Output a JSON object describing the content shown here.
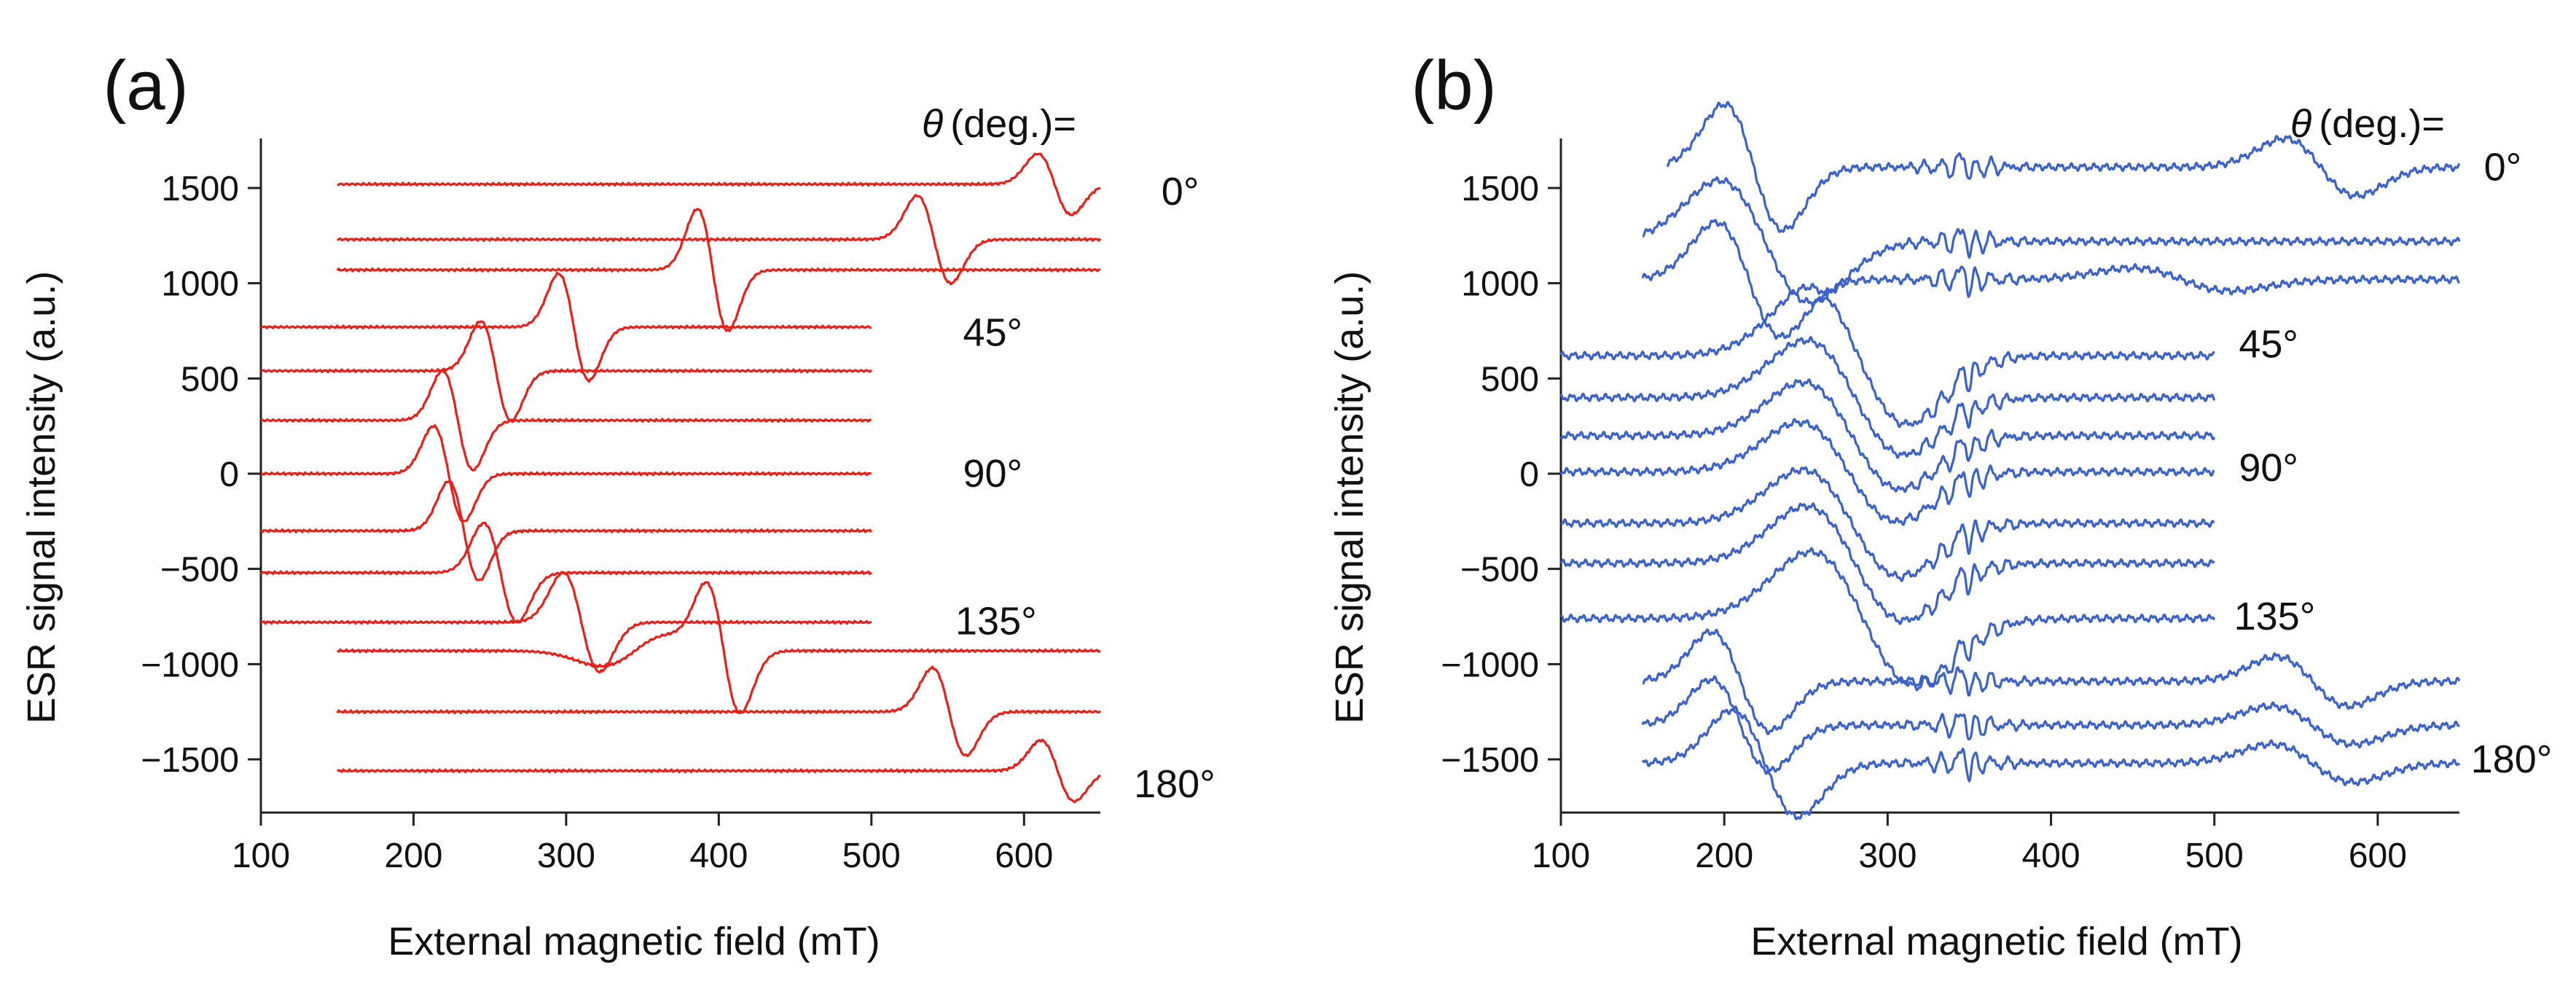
{
  "chart_data": [
    {
      "type": "line",
      "panel_label": "(a)",
      "xlabel": "External magnetic field (mT)",
      "ylabel": "ESR signal intensity (a.u.)",
      "xlim": [
        100,
        650
      ],
      "ylim": [
        -1800,
        1800
      ],
      "xticks": [
        100,
        200,
        300,
        400,
        500,
        600
      ],
      "xtick_labels": [
        "100",
        "200",
        "300",
        "400",
        "500",
        "600"
      ],
      "yticks": [
        1500,
        1000,
        500,
        0,
        -500,
        -1000,
        -1500
      ],
      "ytick_labels": [
        "1500",
        "1000",
        "500",
        "0",
        "−500",
        "−1000",
        "−1500"
      ],
      "header": {
        "symbol": "θ",
        "text": "(deg.)="
      },
      "annotations": [
        {
          "text": "0°",
          "x": 690,
          "y": 1480
        },
        {
          "text": "45°",
          "x": 560,
          "y": 740
        },
        {
          "text": "90°",
          "x": 560,
          "y": 0
        },
        {
          "text": "135°",
          "x": 555,
          "y": -775
        },
        {
          "text": "180°",
          "x": 672,
          "y": -1630
        }
      ],
      "color": "#e8201a",
      "series": [
        {
          "x_range": [
            150,
            650
          ],
          "baseline": 1520,
          "features": [
            {
              "center": 620,
              "width": 11,
              "amplitude": 160
            }
          ]
        },
        {
          "x_range": [
            150,
            650
          ],
          "baseline": 1230,
          "features": [
            {
              "center": 541,
              "width": 11,
              "amplitude": 230
            }
          ]
        },
        {
          "x_range": [
            150,
            650
          ],
          "baseline": 1070,
          "features": [
            {
              "center": 396,
              "width": 10,
              "amplitude": 320
            }
          ]
        },
        {
          "x_range": [
            100,
            500
          ],
          "baseline": 770,
          "features": [
            {
              "center": 305,
              "width": 10,
              "amplitude": 280
            }
          ]
        },
        {
          "x_range": [
            100,
            500
          ],
          "baseline": 540,
          "features": [
            {
              "center": 254,
              "width": 10,
              "amplitude": 260
            }
          ]
        },
        {
          "x_range": [
            100,
            500
          ],
          "baseline": 280,
          "features": [
            {
              "center": 229,
              "width": 10,
              "amplitude": 260
            }
          ]
        },
        {
          "x_range": [
            100,
            500
          ],
          "baseline": 0,
          "features": [
            {
              "center": 223,
              "width": 10,
              "amplitude": 250
            }
          ]
        },
        {
          "x_range": [
            100,
            500
          ],
          "baseline": -300,
          "features": [
            {
              "center": 233,
              "width": 10,
              "amplitude": 260
            }
          ]
        },
        {
          "x_range": [
            100,
            500
          ],
          "baseline": -520,
          "features": [
            {
              "center": 257,
              "width": 11,
              "amplitude": 260
            }
          ]
        },
        {
          "x_range": [
            100,
            500
          ],
          "baseline": -780,
          "features": [
            {
              "center": 310,
              "width": 12,
              "amplitude": 260
            }
          ]
        },
        {
          "x_range": [
            150,
            650
          ],
          "baseline": -930,
          "features": [
            {
              "center": 403,
              "width": 11,
              "amplitude": 330
            },
            {
              "center": 345,
              "width": 22,
              "amplitude": -80
            }
          ]
        },
        {
          "x_range": [
            150,
            650
          ],
          "baseline": -1250,
          "features": [
            {
              "center": 551,
              "width": 11,
              "amplitude": 230
            }
          ]
        },
        {
          "x_range": [
            150,
            650
          ],
          "baseline": -1560,
          "features": [
            {
              "center": 622,
              "width": 11,
              "amplitude": 160
            }
          ]
        }
      ]
    },
    {
      "type": "line",
      "panel_label": "(b)",
      "xlabel": "External magnetic field (mT)",
      "ylabel": "ESR signal intensity (a.u.)",
      "xlim": [
        100,
        650
      ],
      "ylim": [
        -1800,
        1800
      ],
      "xticks": [
        100,
        200,
        300,
        400,
        500,
        600
      ],
      "xtick_labels": [
        "100",
        "200",
        "300",
        "400",
        "500",
        "600"
      ],
      "yticks": [
        1500,
        1000,
        500,
        0,
        -500,
        -1000,
        -1500
      ],
      "ytick_labels": [
        "1500",
        "1000",
        "500",
        "0",
        "−500",
        "−1000",
        "−1500"
      ],
      "header": {
        "symbol": "θ",
        "text": "(deg.)="
      },
      "annotations": [
        {
          "text": "0°",
          "x": 665,
          "y": 1610
        },
        {
          "text": "45°",
          "x": 515,
          "y": 680
        },
        {
          "text": "90°",
          "x": 515,
          "y": 30
        },
        {
          "text": "135°",
          "x": 512,
          "y": -750
        },
        {
          "text": "180°",
          "x": 657,
          "y": -1500
        }
      ],
      "color": "#3a62c8",
      "series": [
        {
          "x_range": [
            165,
            650
          ],
          "baseline": 1610,
          "fine_structure": true,
          "features": [
            {
              "center": 218,
              "width": 18,
              "amplitude": 330
            },
            {
              "center": 565,
              "width": 22,
              "amplitude": 150
            }
          ]
        },
        {
          "x_range": [
            150,
            650
          ],
          "baseline": 1220,
          "fine_structure": true,
          "features": [
            {
              "center": 225,
              "width": 28,
              "amplitude": 320
            }
          ]
        },
        {
          "x_range": [
            150,
            650
          ],
          "baseline": 1020,
          "fine_structure": true,
          "features": [
            {
              "center": 215,
              "width": 20,
              "amplitude": 300
            },
            {
              "center": 480,
              "width": 30,
              "amplitude": 60
            }
          ]
        },
        {
          "x_range": [
            100,
            500
          ],
          "baseline": 620,
          "fine_structure": true,
          "features": [
            {
              "center": 282,
              "width": 30,
              "amplitude": 360
            }
          ]
        },
        {
          "x_range": [
            100,
            500
          ],
          "baseline": 400,
          "fine_structure": true,
          "features": [
            {
              "center": 280,
              "width": 30,
              "amplitude": 300
            }
          ]
        },
        {
          "x_range": [
            100,
            500
          ],
          "baseline": 200,
          "fine_structure": true,
          "features": [
            {
              "center": 278,
              "width": 30,
              "amplitude": 280
            }
          ]
        },
        {
          "x_range": [
            100,
            500
          ],
          "baseline": 10,
          "fine_structure": true,
          "features": [
            {
              "center": 276,
              "width": 30,
              "amplitude": 260
            }
          ]
        },
        {
          "x_range": [
            100,
            500
          ],
          "baseline": -260,
          "fine_structure": true,
          "features": [
            {
              "center": 278,
              "width": 30,
              "amplitude": 280
            }
          ]
        },
        {
          "x_range": [
            100,
            500
          ],
          "baseline": -470,
          "fine_structure": true,
          "features": [
            {
              "center": 280,
              "width": 30,
              "amplitude": 300
            }
          ]
        },
        {
          "x_range": [
            100,
            500
          ],
          "baseline": -760,
          "fine_structure": true,
          "features": [
            {
              "center": 285,
              "width": 32,
              "amplitude": 350
            }
          ]
        },
        {
          "x_range": [
            150,
            650
          ],
          "baseline": -1090,
          "fine_structure": true,
          "features": [
            {
              "center": 210,
              "width": 18,
              "amplitude": 260
            },
            {
              "center": 560,
              "width": 22,
              "amplitude": 130
            }
          ]
        },
        {
          "x_range": [
            150,
            650
          ],
          "baseline": -1320,
          "fine_structure": true,
          "features": [
            {
              "center": 210,
              "width": 18,
              "amplitude": 240
            },
            {
              "center": 560,
              "width": 25,
              "amplitude": 100
            }
          ]
        },
        {
          "x_range": [
            150,
            650
          ],
          "baseline": -1520,
          "fine_structure": true,
          "features": [
            {
              "center": 225,
              "width": 20,
              "amplitude": 280
            },
            {
              "center": 560,
              "width": 25,
              "amplitude": 100
            }
          ]
        }
      ]
    }
  ]
}
